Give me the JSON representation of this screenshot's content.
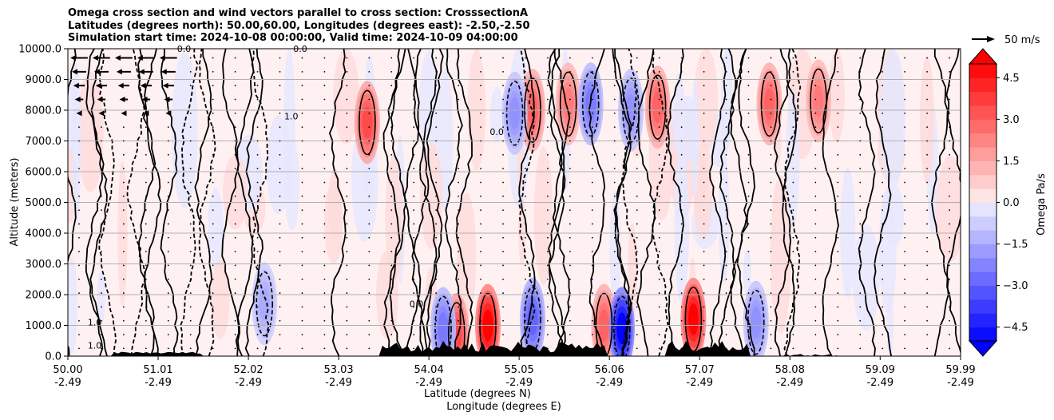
{
  "header": {
    "title_line1": "Omega cross section and wind vectors parallel to cross section: CrosssectionA",
    "title_line2": "Latitudes (degrees north): 50.00,60.00, Longitudes (degrees east): -2.50,-2.50",
    "title_line3": "Simulation start time: 2024-10-08 00:00:00, Valid time: 2024-10-09 04:00:00"
  },
  "chart_data": {
    "type": "heatmap",
    "title": "Omega cross section and wind vectors parallel to cross section: CrosssectionA",
    "xlabel": "Latitude (degrees N)",
    "xlabel2": "Longitude (degrees E)",
    "ylabel": "Altitude (meters)",
    "xlim": [
      50.0,
      59.99
    ],
    "ylim": [
      0,
      10000
    ],
    "grid": "horizontal",
    "x_ticks": [
      {
        "lat": "50.00",
        "lon": "-2.49",
        "value": 50.0
      },
      {
        "lat": "51.01",
        "lon": "-2.49",
        "value": 51.01
      },
      {
        "lat": "52.02",
        "lon": "-2.49",
        "value": 52.02
      },
      {
        "lat": "53.03",
        "lon": "-2.49",
        "value": 53.03
      },
      {
        "lat": "54.04",
        "lon": "-2.49",
        "value": 54.04
      },
      {
        "lat": "55.05",
        "lon": "-2.49",
        "value": 55.05
      },
      {
        "lat": "56.06",
        "lon": "-2.49",
        "value": 56.06
      },
      {
        "lat": "57.07",
        "lon": "-2.49",
        "value": 57.07
      },
      {
        "lat": "58.08",
        "lon": "-2.49",
        "value": 58.08
      },
      {
        "lat": "59.09",
        "lon": "-2.49",
        "value": 59.09
      },
      {
        "lat": "59.99",
        "lon": "-2.49",
        "value": 59.99
      }
    ],
    "y_ticks": [
      {
        "label": "0.0",
        "value": 0
      },
      {
        "label": "1000.0",
        "value": 1000
      },
      {
        "label": "2000.0",
        "value": 2000
      },
      {
        "label": "3000.0",
        "value": 3000
      },
      {
        "label": "4000.0",
        "value": 4000
      },
      {
        "label": "5000.0",
        "value": 5000
      },
      {
        "label": "6000.0",
        "value": 6000
      },
      {
        "label": "7000.0",
        "value": 7000
      },
      {
        "label": "8000.0",
        "value": 8000
      },
      {
        "label": "9000.0",
        "value": 9000
      },
      {
        "label": "10000.0",
        "value": 10000
      }
    ],
    "colorbar": {
      "label": "Omega Pa/s",
      "min": -5.0,
      "max": 5.0,
      "extend": "both",
      "ticks": [
        {
          "label": "4.5",
          "value": 4.5
        },
        {
          "label": "3.0",
          "value": 3.0
        },
        {
          "label": "1.5",
          "value": 1.5
        },
        {
          "label": "0.0",
          "value": 0.0
        },
        {
          "label": "−1.5",
          "value": -1.5
        },
        {
          "label": "−3.0",
          "value": -3.0
        },
        {
          "label": "−4.5",
          "value": -4.5
        }
      ],
      "neg_color": "#0000ff",
      "pos_color": "#ff0000"
    },
    "quiver_key": "50 m/s",
    "contour_labels": [
      {
        "text": "0.0",
        "x": 53.9,
        "y": 1600
      },
      {
        "text": "1.0",
        "x": 52.5,
        "y": 7700
      },
      {
        "text": "0.0",
        "x": 51.3,
        "y": 9900
      },
      {
        "text": "1.0",
        "x": 50.3,
        "y": 1000
      },
      {
        "text": "1.0",
        "x": 50.3,
        "y": 250
      },
      {
        "text": "0.0",
        "x": 52.6,
        "y": 9900
      },
      {
        "text": "0.0",
        "x": 54.8,
        "y": 7200
      }
    ],
    "features": [
      {
        "kind": "positive",
        "lat": 53.35,
        "alt": 7600,
        "amp": 3.5
      },
      {
        "kind": "positive",
        "lat": 55.2,
        "alt": 8000,
        "amp": 3.0
      },
      {
        "kind": "positive",
        "lat": 55.6,
        "alt": 8200,
        "amp": 2.5
      },
      {
        "kind": "positive",
        "lat": 56.6,
        "alt": 8100,
        "amp": 3.0
      },
      {
        "kind": "positive",
        "lat": 57.85,
        "alt": 8200,
        "amp": 3.0
      },
      {
        "kind": "positive",
        "lat": 58.4,
        "alt": 8300,
        "amp": 2.5
      },
      {
        "kind": "positive",
        "lat": 54.7,
        "alt": 1000,
        "amp": 5.0
      },
      {
        "kind": "positive",
        "lat": 57.0,
        "alt": 1200,
        "amp": 5.0
      },
      {
        "kind": "positive",
        "lat": 56.0,
        "alt": 1000,
        "amp": 3.0
      },
      {
        "kind": "positive",
        "lat": 54.35,
        "alt": 700,
        "amp": 3.5
      },
      {
        "kind": "negative",
        "lat": 55.85,
        "alt": 8200,
        "amp": 2.5
      },
      {
        "kind": "negative",
        "lat": 56.3,
        "alt": 8000,
        "amp": 2.0
      },
      {
        "kind": "negative",
        "lat": 55.0,
        "alt": 7900,
        "amp": 2.0
      },
      {
        "kind": "negative",
        "lat": 56.2,
        "alt": 900,
        "amp": 5.0
      },
      {
        "kind": "negative",
        "lat": 55.2,
        "alt": 1200,
        "amp": 3.0
      },
      {
        "kind": "negative",
        "lat": 54.2,
        "alt": 900,
        "amp": 2.5
      },
      {
        "kind": "negative",
        "lat": 52.2,
        "alt": 1700,
        "amp": 1.5
      },
      {
        "kind": "negative",
        "lat": 57.7,
        "alt": 1100,
        "amp": 2.0
      }
    ]
  }
}
